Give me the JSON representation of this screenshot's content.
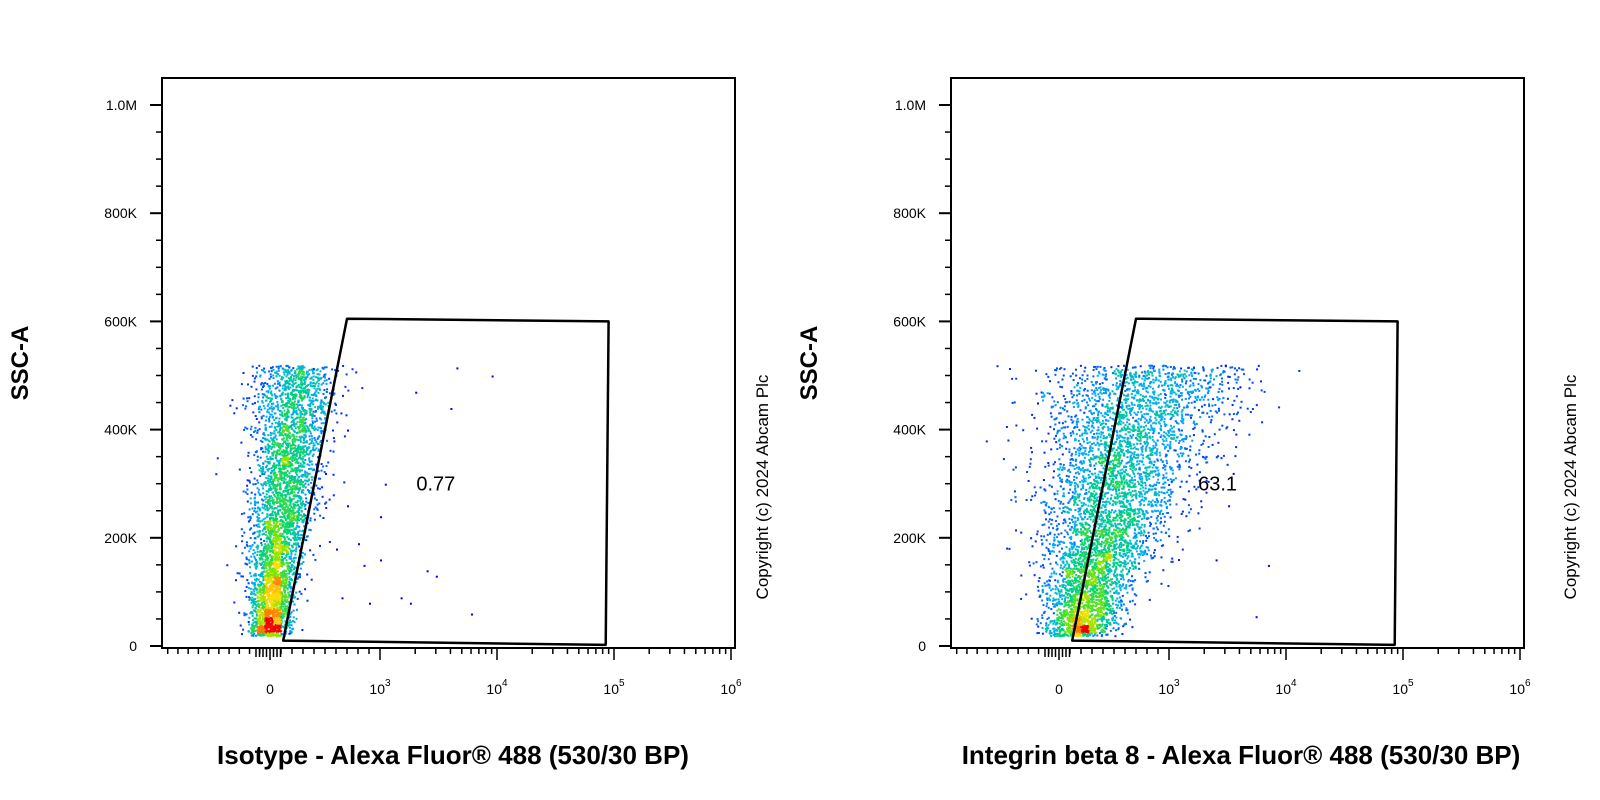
{
  "chart_data": [
    {
      "type": "scatter",
      "subtype": "flow-cytometry-density-plot",
      "title": "",
      "xlabel": "Isotype - Alexa Fluor® 488 (530/30 BP)",
      "ylabel": "SSC-A",
      "x_scale": "biexponential",
      "xlim": [
        -300,
        1000000
      ],
      "ylim": [
        0,
        1050000
      ],
      "x_ticks": [
        {
          "value": 0,
          "base": "0",
          "exp": ""
        },
        {
          "value": 1000,
          "base": "10",
          "exp": "3"
        },
        {
          "value": 10000,
          "base": "10",
          "exp": "4"
        },
        {
          "value": 100000,
          "base": "10",
          "exp": "5"
        },
        {
          "value": 1000000,
          "base": "10",
          "exp": "6"
        }
      ],
      "y_ticks": [
        {
          "value": 0,
          "label": "0"
        },
        {
          "value": 200000,
          "label": "200K"
        },
        {
          "value": 400000,
          "label": "400K"
        },
        {
          "value": 600000,
          "label": "600K"
        },
        {
          "value": 800000,
          "label": "800K"
        },
        {
          "value": 1000000,
          "label": "1.0M"
        }
      ],
      "gate": {
        "label": "0.77",
        "label_position": {
          "x": 3000,
          "y": 300000
        },
        "vertices": [
          {
            "x": 120,
            "y": 10000
          },
          {
            "x": 700,
            "y": 605000
          },
          {
            "x": 90000,
            "y": 600000
          },
          {
            "x": 85000,
            "y": 2000
          }
        ]
      },
      "population": {
        "description": "main cluster near x≈0, SSC 20K–520K, densest around 100K–200K",
        "events_outside_gate_fraction": 0.9923
      },
      "sparse_points": [
        {
          "x": 500,
          "y": 320000
        },
        {
          "x": 700,
          "y": 400000
        },
        {
          "x": 1100,
          "y": 300000
        },
        {
          "x": 1000,
          "y": 240000
        },
        {
          "x": 700,
          "y": 260000
        },
        {
          "x": 2000,
          "y": 470000
        },
        {
          "x": 4000,
          "y": 440000
        },
        {
          "x": 4500,
          "y": 515000
        },
        {
          "x": 9000,
          "y": 500000
        },
        {
          "x": 3000,
          "y": 130000
        },
        {
          "x": 800,
          "y": 190000
        },
        {
          "x": 600,
          "y": 180000
        },
        {
          "x": 850,
          "y": 150000
        },
        {
          "x": 1000,
          "y": 160000
        },
        {
          "x": 1500,
          "y": 90000
        },
        {
          "x": 1800,
          "y": 80000
        },
        {
          "x": 6000,
          "y": 60000
        },
        {
          "x": 650,
          "y": 90000
        },
        {
          "x": 900,
          "y": 80000
        },
        {
          "x": 2500,
          "y": 140000
        }
      ],
      "copyright": "Copyright (c) 2024 Abcam Plc"
    },
    {
      "type": "scatter",
      "subtype": "flow-cytometry-density-plot",
      "title": "",
      "xlabel": "Integrin beta 8 - Alexa Fluor® 488 (530/30 BP)",
      "ylabel": "SSC-A",
      "x_scale": "biexponential",
      "xlim": [
        -300,
        1000000
      ],
      "ylim": [
        0,
        1050000
      ],
      "x_ticks": [
        {
          "value": 0,
          "base": "0",
          "exp": ""
        },
        {
          "value": 1000,
          "base": "10",
          "exp": "3"
        },
        {
          "value": 10000,
          "base": "10",
          "exp": "4"
        },
        {
          "value": 100000,
          "base": "10",
          "exp": "5"
        },
        {
          "value": 1000000,
          "base": "10",
          "exp": "6"
        }
      ],
      "y_ticks": [
        {
          "value": 0,
          "label": "0"
        },
        {
          "value": 200000,
          "label": "200K"
        },
        {
          "value": 400000,
          "label": "400K"
        },
        {
          "value": 600000,
          "label": "600K"
        },
        {
          "value": 800000,
          "label": "800K"
        },
        {
          "value": 1000000,
          "label": "1.0M"
        }
      ],
      "gate": {
        "label": "63.1",
        "label_position": {
          "x": 2600,
          "y": 300000
        },
        "vertices": [
          {
            "x": 120,
            "y": 10000
          },
          {
            "x": 700,
            "y": 605000
          },
          {
            "x": 90000,
            "y": 600000
          },
          {
            "x": 85000,
            "y": 2000
          }
        ]
      },
      "population": {
        "description": "broad cluster spreading diagonally from x≈0 to x≈2000, SSC 20K–520K, densest around 100K–150K",
        "events_inside_gate_fraction": 0.631
      },
      "sparse_points": [
        {
          "x": -200,
          "y": 450000
        },
        {
          "x": 3000,
          "y": 520000
        },
        {
          "x": 4000,
          "y": 480000
        },
        {
          "x": 3500,
          "y": 320000
        },
        {
          "x": 2500,
          "y": 160000
        },
        {
          "x": 7000,
          "y": 150000
        },
        {
          "x": 5500,
          "y": 55000
        },
        {
          "x": 3200,
          "y": 260000
        }
      ],
      "copyright": "Copyright (c) 2024 Abcam Plc"
    }
  ]
}
